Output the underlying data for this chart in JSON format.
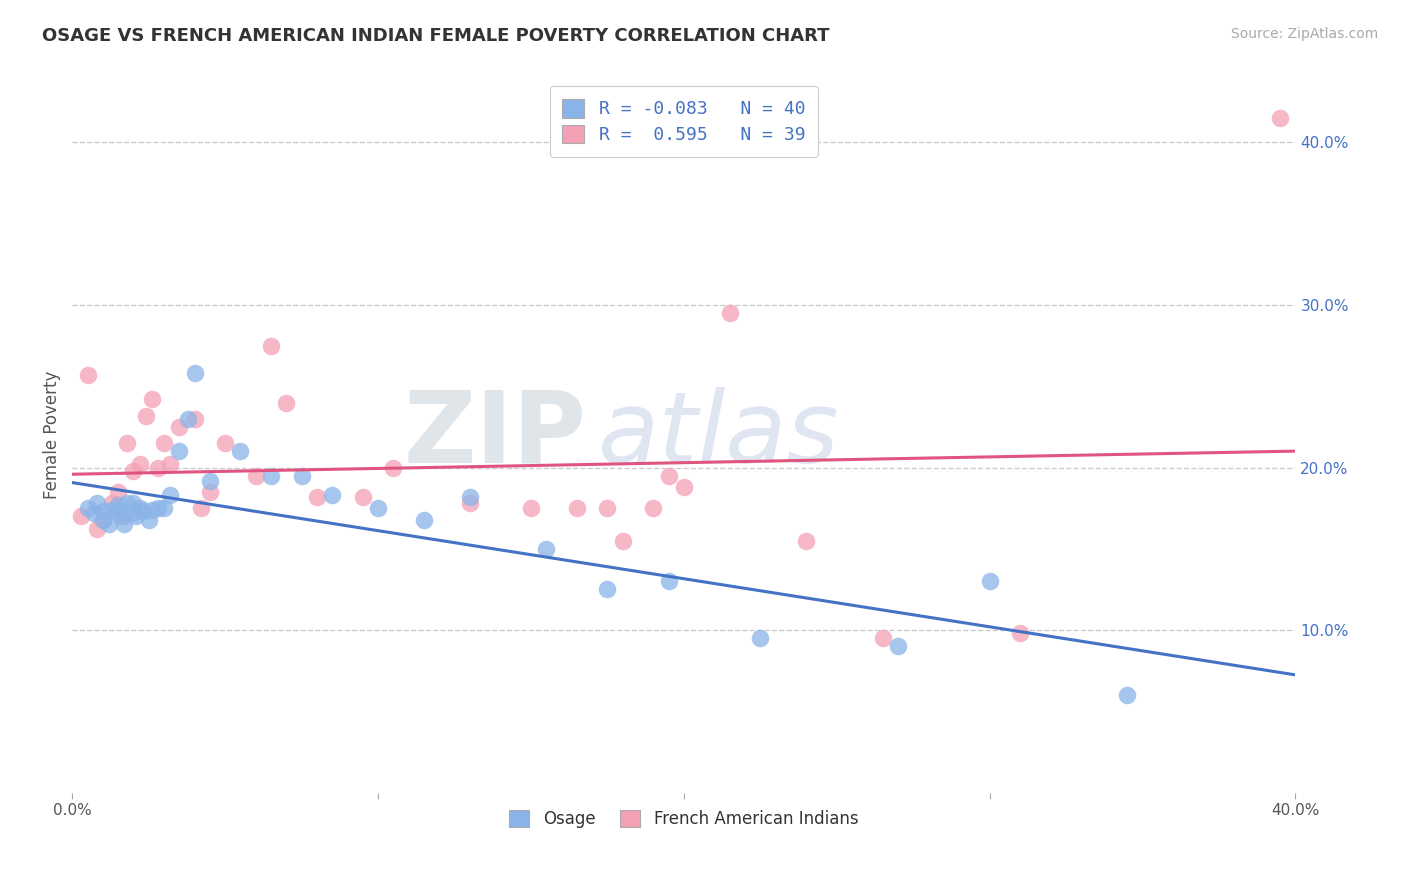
{
  "title": "OSAGE VS FRENCH AMERICAN INDIAN FEMALE POVERTY CORRELATION CHART",
  "source": "Source: ZipAtlas.com",
  "ylabel": "Female Poverty",
  "xlim": [
    0.0,
    0.4
  ],
  "ylim": [
    0.0,
    0.44
  ],
  "xticks": [
    0.0,
    0.1,
    0.2,
    0.3,
    0.4
  ],
  "xticklabels": [
    "0.0%",
    "",
    "",
    "",
    "40.0%"
  ],
  "yticks_right": [
    0.1,
    0.2,
    0.3,
    0.4
  ],
  "yticklabels_right": [
    "10.0%",
    "20.0%",
    "30.0%",
    "40.0%"
  ],
  "osage_color": "#8ab4e8",
  "french_color": "#f4a0b5",
  "osage_line_color": "#4472c4",
  "french_line_color": "#e05580",
  "legend_R_osage": "-0.083",
  "legend_N_osage": "40",
  "legend_R_french": "0.595",
  "legend_N_french": "39",
  "watermark": "ZIPatlas",
  "osage_x": [
    0.005,
    0.007,
    0.008,
    0.01,
    0.01,
    0.012,
    0.013,
    0.015,
    0.015,
    0.016,
    0.017,
    0.018,
    0.02,
    0.02,
    0.021,
    0.022,
    0.023,
    0.025,
    0.026,
    0.028,
    0.03,
    0.032,
    0.035,
    0.038,
    0.04,
    0.045,
    0.055,
    0.065,
    0.075,
    0.085,
    0.1,
    0.115,
    0.13,
    0.155,
    0.175,
    0.195,
    0.225,
    0.27,
    0.3,
    0.345
  ],
  "osage_y": [
    0.175,
    0.172,
    0.178,
    0.168,
    0.173,
    0.165,
    0.174,
    0.174,
    0.177,
    0.17,
    0.165,
    0.178,
    0.172,
    0.178,
    0.17,
    0.175,
    0.173,
    0.168,
    0.174,
    0.175,
    0.175,
    0.183,
    0.21,
    0.23,
    0.258,
    0.192,
    0.21,
    0.195,
    0.195,
    0.183,
    0.175,
    0.168,
    0.182,
    0.15,
    0.125,
    0.13,
    0.095,
    0.09,
    0.13,
    0.06
  ],
  "french_x": [
    0.003,
    0.005,
    0.008,
    0.01,
    0.013,
    0.015,
    0.017,
    0.018,
    0.02,
    0.022,
    0.024,
    0.026,
    0.028,
    0.03,
    0.032,
    0.035,
    0.04,
    0.042,
    0.045,
    0.05,
    0.06,
    0.065,
    0.07,
    0.08,
    0.095,
    0.105,
    0.13,
    0.15,
    0.165,
    0.175,
    0.18,
    0.19,
    0.195,
    0.2,
    0.215,
    0.24,
    0.265,
    0.31,
    0.395
  ],
  "french_y": [
    0.17,
    0.257,
    0.162,
    0.168,
    0.178,
    0.185,
    0.17,
    0.215,
    0.198,
    0.202,
    0.232,
    0.242,
    0.2,
    0.215,
    0.202,
    0.225,
    0.23,
    0.175,
    0.185,
    0.215,
    0.195,
    0.275,
    0.24,
    0.182,
    0.182,
    0.2,
    0.178,
    0.175,
    0.175,
    0.175,
    0.155,
    0.175,
    0.195,
    0.188,
    0.295,
    0.155,
    0.095,
    0.098,
    0.415
  ]
}
